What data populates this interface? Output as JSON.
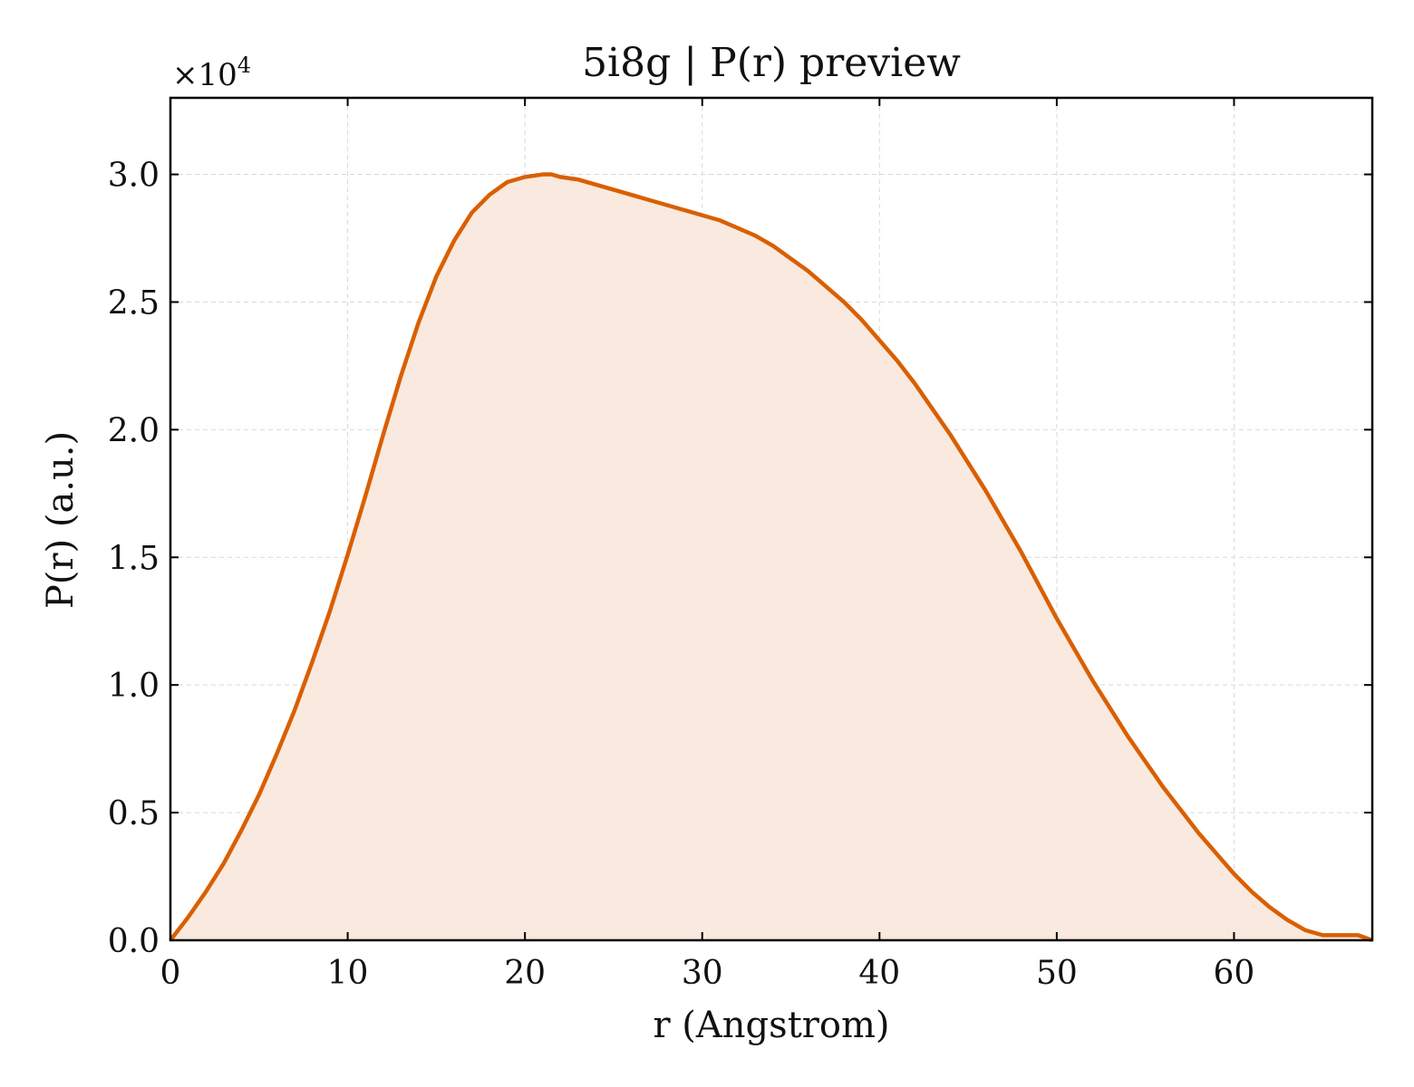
{
  "chart_data": {
    "type": "area",
    "title": "5i8g | P(r) preview",
    "xlabel": "r (Angstrom)",
    "ylabel": "P(r) (a.u.)",
    "y_multiplier": "×10",
    "y_multiplier_exp": "4",
    "xlim": [
      0,
      67.8
    ],
    "ylim": [
      0,
      3.3
    ],
    "x_ticks": [
      0,
      10,
      20,
      30,
      40,
      50,
      60
    ],
    "x_tick_labels": [
      "0",
      "10",
      "20",
      "30",
      "40",
      "50",
      "60"
    ],
    "y_ticks": [
      0,
      0.5,
      1.0,
      1.5,
      2.0,
      2.5,
      3.0
    ],
    "y_tick_labels": [
      "0.0",
      "0.5",
      "1.0",
      "1.5",
      "2.0",
      "2.5",
      "3.0"
    ],
    "grid": true,
    "colors": {
      "line": "#d95f02",
      "fill": "#f9e9de",
      "grid": "#d9d9d9",
      "axis": "#000000"
    },
    "series": [
      {
        "x": [
          0,
          1,
          2,
          3,
          4,
          5,
          6,
          7,
          8,
          9,
          10,
          11,
          12,
          13,
          14,
          15,
          16,
          17,
          18,
          19,
          20,
          21,
          21.5,
          22,
          23,
          24,
          25,
          26,
          27,
          28,
          29,
          30,
          31,
          32,
          33,
          34,
          35,
          36,
          37,
          38,
          39,
          40,
          41,
          42,
          43,
          44,
          45,
          46,
          47,
          48,
          49,
          50,
          51,
          52,
          53,
          54,
          55,
          56,
          57,
          58,
          59,
          60,
          61,
          62,
          63,
          64,
          65,
          66,
          67,
          67.8
        ],
        "values": [
          0.0,
          0.09,
          0.19,
          0.3,
          0.43,
          0.57,
          0.73,
          0.9,
          1.09,
          1.29,
          1.51,
          1.74,
          1.98,
          2.21,
          2.42,
          2.6,
          2.74,
          2.85,
          2.92,
          2.97,
          2.99,
          3.0,
          3.0,
          2.99,
          2.98,
          2.96,
          2.94,
          2.92,
          2.9,
          2.88,
          2.86,
          2.84,
          2.82,
          2.79,
          2.76,
          2.72,
          2.67,
          2.62,
          2.56,
          2.5,
          2.43,
          2.35,
          2.27,
          2.18,
          2.08,
          1.98,
          1.87,
          1.76,
          1.64,
          1.52,
          1.39,
          1.26,
          1.14,
          1.02,
          0.91,
          0.8,
          0.7,
          0.6,
          0.51,
          0.42,
          0.34,
          0.26,
          0.19,
          0.13,
          0.08,
          0.04,
          0.02,
          0.02,
          0.02,
          0.0
        ]
      }
    ]
  }
}
